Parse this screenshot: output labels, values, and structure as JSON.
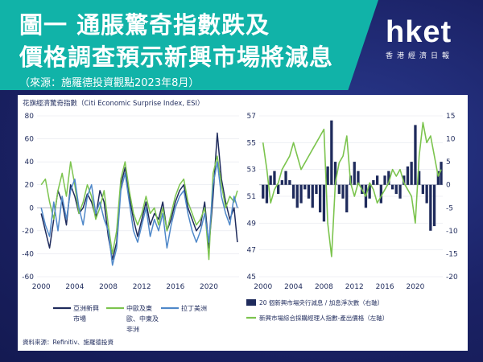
{
  "header": {
    "title_line1": "圖一 通脹驚奇指數跌及",
    "title_line2": "價格調查預示新興市場將減息",
    "source": "（來源：施羅德投資觀點2023年8月）"
  },
  "logo": {
    "brand": "hket",
    "tagline": "香港經濟日報"
  },
  "colors": {
    "teal_banner": "#11b3a8",
    "navy": "#1f2b5c",
    "green": "#7cc44e",
    "blue": "#4f88c9"
  },
  "chart_data": [
    {
      "type": "line",
      "title": "花旗經濟驚奇指數（Citi Economic Surprise Index, ESI）",
      "xticks": [
        "2000",
        "2004",
        "2008",
        "2012",
        "2016",
        "2020"
      ],
      "x_range": [
        1999.5,
        2023.6
      ],
      "ylim": [
        -60,
        80
      ],
      "yticks": [
        "80",
        "60",
        "40",
        "20",
        "0",
        "-20",
        "-40",
        "-60"
      ],
      "legend_placement": "bottom",
      "legend_labels": {
        "em_asia_line1": "亞洲新興",
        "em_asia_line2": "市場",
        "emea_line1": "中歐及東",
        "emea_line2": "歐、中東及",
        "emea_line3": "非洲",
        "latam": "拉丁美洲"
      },
      "series": [
        {
          "name": "亞洲新興市場",
          "color": "#1f2b5c",
          "x": [
            2000,
            2000.5,
            2001,
            2001.5,
            2002,
            2002.5,
            2003,
            2003.5,
            2004,
            2004.5,
            2005,
            2005.5,
            2006,
            2006.5,
            2007,
            2007.5,
            2008,
            2008.5,
            2009,
            2009.5,
            2010,
            2010.5,
            2011,
            2011.5,
            2012,
            2012.5,
            2013,
            2013.5,
            2014,
            2014.5,
            2015,
            2015.5,
            2016,
            2016.5,
            2017,
            2017.5,
            2018,
            2018.5,
            2019,
            2019.5,
            2020,
            2020.5,
            2021,
            2021.5,
            2022,
            2022.5,
            2023,
            2023.4
          ],
          "y": [
            -5,
            -20,
            -35,
            -10,
            15,
            5,
            -15,
            20,
            10,
            -5,
            0,
            12,
            5,
            -8,
            15,
            5,
            -25,
            -45,
            -30,
            20,
            35,
            10,
            -10,
            -25,
            -10,
            5,
            -15,
            -5,
            -10,
            5,
            -20,
            -10,
            5,
            15,
            20,
            0,
            -10,
            -20,
            -15,
            5,
            -35,
            10,
            65,
            25,
            5,
            -10,
            0,
            -30
          ]
        },
        {
          "name": "中歐及東歐、中東及非洲",
          "color": "#7cc44e",
          "x": [
            2000,
            2000.5,
            2001,
            2001.5,
            2002,
            2002.5,
            2003,
            2003.5,
            2004,
            2004.5,
            2005,
            2005.5,
            2006,
            2006.5,
            2007,
            2007.5,
            2008,
            2008.5,
            2009,
            2009.5,
            2010,
            2010.5,
            2011,
            2011.5,
            2012,
            2012.5,
            2013,
            2013.5,
            2014,
            2014.5,
            2015,
            2015.5,
            2016,
            2016.5,
            2017,
            2017.5,
            2018,
            2018.5,
            2019,
            2019.5,
            2020,
            2020.5,
            2021,
            2021.5,
            2022,
            2022.5,
            2023,
            2023.4
          ],
          "y": [
            20,
            25,
            5,
            -10,
            15,
            30,
            10,
            40,
            20,
            -5,
            5,
            20,
            10,
            -10,
            0,
            15,
            -15,
            -40,
            -20,
            25,
            40,
            15,
            -5,
            -15,
            -5,
            10,
            -5,
            0,
            -15,
            0,
            -20,
            -5,
            10,
            20,
            25,
            5,
            -5,
            -15,
            -10,
            0,
            -45,
            30,
            45,
            20,
            0,
            10,
            5,
            15
          ]
        },
        {
          "name": "拉丁美洲",
          "color": "#4f88c9",
          "x": [
            2000,
            2000.5,
            2001,
            2001.5,
            2002,
            2002.5,
            2003,
            2003.5,
            2004,
            2004.5,
            2005,
            2005.5,
            2006,
            2006.5,
            2007,
            2007.5,
            2008,
            2008.5,
            2009,
            2009.5,
            2010,
            2010.5,
            2011,
            2011.5,
            2012,
            2012.5,
            2013,
            2013.5,
            2014,
            2014.5,
            2015,
            2015.5,
            2016,
            2016.5,
            2017,
            2017.5,
            2018,
            2018.5,
            2019,
            2019.5,
            2020,
            2020.5,
            2021,
            2021.5,
            2022,
            2022.5,
            2023,
            2023.4
          ],
          "y": [
            0,
            -15,
            -25,
            5,
            -20,
            10,
            -10,
            15,
            25,
            0,
            -15,
            10,
            20,
            -5,
            5,
            -10,
            -20,
            -50,
            -35,
            15,
            30,
            5,
            -20,
            -30,
            -15,
            0,
            -25,
            -10,
            -20,
            -5,
            -35,
            -15,
            0,
            10,
            15,
            -5,
            -20,
            -30,
            -20,
            -5,
            -30,
            20,
            40,
            10,
            -5,
            -15,
            10,
            0
          ]
        }
      ]
    },
    {
      "type": "bar+line",
      "xticks": [
        "2000",
        "2004",
        "2008",
        "2012",
        "2016",
        "2020"
      ],
      "x_range": [
        1999.5,
        2023.6
      ],
      "left_ylim": [
        45,
        57
      ],
      "left_yticks": [
        "57",
        "55",
        "53",
        "51",
        "49",
        "47",
        "45"
      ],
      "right_ylim": [
        -20,
        15
      ],
      "right_yticks": [
        "15",
        "10",
        "5",
        "0",
        "-5",
        "-10",
        "-15",
        "-20"
      ],
      "legend_placement": "bottom",
      "bars": {
        "name": "20 個新興市場央行減息 / 加息淨次數（右軸）",
        "color": "#1f2b5c",
        "x": [
          2000,
          2000.5,
          2001,
          2001.5,
          2002,
          2002.5,
          2003,
          2003.5,
          2004,
          2004.5,
          2005,
          2005.5,
          2006,
          2006.5,
          2007,
          2007.5,
          2008,
          2008.5,
          2009,
          2009.5,
          2010,
          2010.5,
          2011,
          2011.5,
          2012,
          2012.5,
          2013,
          2013.5,
          2014,
          2014.5,
          2015,
          2015.5,
          2016,
          2016.5,
          2017,
          2017.5,
          2018,
          2018.5,
          2019,
          2019.5,
          2020,
          2020.5,
          2021,
          2021.5,
          2022,
          2022.5,
          2023,
          2023.4
        ],
        "values": [
          -3,
          -4,
          2,
          3,
          -2,
          1,
          3,
          1,
          -3,
          -5,
          -4,
          -1,
          -3,
          -5,
          -2,
          -6,
          -8,
          4,
          14,
          5,
          -2,
          -3,
          -6,
          2,
          5,
          3,
          -2,
          -5,
          -3,
          1,
          2,
          -4,
          2,
          3,
          -1,
          -2,
          -3,
          2,
          4,
          5,
          13,
          3,
          -2,
          -4,
          -10,
          -9,
          3,
          5
        ]
      },
      "series": [
        {
          "name": "新興市場綜合採購經理人指數-產出價格（左軸）",
          "color": "#7cc44e",
          "x": [
            2000,
            2000.5,
            2001,
            2001.5,
            2002,
            2002.5,
            2003,
            2003.5,
            2004,
            2004.5,
            2005,
            2005.5,
            2006,
            2006.5,
            2007,
            2007.5,
            2008,
            2008.5,
            2009,
            2009.5,
            2010,
            2010.5,
            2011,
            2011.5,
            2012,
            2012.5,
            2013,
            2013.5,
            2014,
            2014.5,
            2015,
            2015.5,
            2016,
            2016.5,
            2017,
            2017.5,
            2018,
            2018.5,
            2019,
            2019.5,
            2020,
            2020.5,
            2021,
            2021.5,
            2022,
            2022.5,
            2023,
            2023.4
          ],
          "y": [
            55,
            53,
            50.5,
            51.5,
            52,
            53,
            53.5,
            54,
            55,
            54,
            53,
            53.5,
            54,
            54.5,
            55,
            55.5,
            56,
            49,
            46.5,
            52,
            53.5,
            54,
            55.5,
            52,
            51,
            52,
            51.5,
            51,
            52,
            51.5,
            50.5,
            51,
            51.5,
            52,
            53,
            52.5,
            53,
            52,
            51.5,
            51,
            49,
            54,
            56.5,
            55,
            55.5,
            54,
            52.5,
            53
          ]
        }
      ]
    }
  ],
  "footer": {
    "data_source": "資料來源：Refinitiv、施羅德投資"
  }
}
